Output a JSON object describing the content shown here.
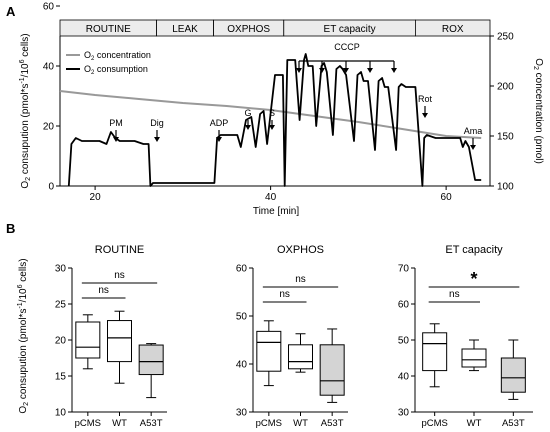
{
  "panel_a": {
    "letter": "A",
    "phases": [
      "ROUTINE",
      "LEAK",
      "OXPHOS",
      "ET capacity",
      "ROX"
    ],
    "legend": [
      {
        "label_main": "O",
        "label_sub": "2",
        "label_rest": " concentration",
        "color": "#999999"
      },
      {
        "label_main": "O",
        "label_sub": "2",
        "label_rest": " consumption",
        "color": "#000000"
      }
    ],
    "ylabel_left": {
      "a": "O",
      "b": "2",
      "c": " consupution (pmol*s",
      "d": "-1",
      "e": "/10",
      "f": "6",
      "g": " cells)"
    },
    "ylabel_right": {
      "a": "O",
      "b": "2",
      "c": " concentration (pmol)"
    },
    "xlabel": "Time [min]",
    "left_ticks": [
      "0",
      "20",
      "40",
      "60"
    ],
    "right_ticks": [
      "100",
      "150",
      "200",
      "250"
    ],
    "x_ticks": [
      "20",
      "40",
      "60"
    ],
    "annotations": [
      "PM",
      "Dig",
      "ADP",
      "G",
      "S",
      "CCCP",
      "Rot",
      "Ama"
    ]
  },
  "panel_b": {
    "letter": "B",
    "ylabel": {
      "a": "O",
      "b": "2",
      "c": " consupution (pmol*s",
      "d": "-1",
      "e": "/10",
      "f": "6",
      "g": " cells)"
    }
  },
  "chart_data": [
    {
      "type": "line",
      "title": "",
      "xlabel": "Time [min]",
      "ylabel": "O2 consupution (pmol*s-1/10^6 cells)",
      "y2label": "O2 concentration (pmol)",
      "xlim": [
        16,
        65
      ],
      "ylim": [
        0,
        50
      ],
      "y2lim": [
        100,
        250
      ],
      "grid": false,
      "legend": "top-left",
      "phase_regions": [
        {
          "label": "ROUTINE",
          "x_start": 16,
          "x_end": 27
        },
        {
          "label": "LEAK",
          "x_start": 27,
          "x_end": 33.5
        },
        {
          "label": "OXPHOS",
          "x_start": 33.5,
          "x_end": 41.5
        },
        {
          "label": "ET capacity",
          "x_start": 41.5,
          "x_end": 56.5
        },
        {
          "label": "ROX",
          "x_start": 56.5,
          "x_end": 65
        }
      ],
      "series": [
        {
          "name": "O2 concentration",
          "axis": "right",
          "color": "#999999",
          "x": [
            16,
            20,
            25,
            30,
            35,
            40,
            45,
            50,
            55,
            60,
            64
          ],
          "y": [
            195,
            191,
            187,
            183,
            180,
            176,
            170,
            164,
            157,
            150,
            148
          ]
        },
        {
          "name": "O2 consumption",
          "axis": "left",
          "color": "#000000",
          "x": [
            17,
            17.3,
            17.8,
            18.5,
            19.5,
            20.5,
            21.3,
            21.8,
            22.3,
            22.8,
            23.5,
            24.5,
            25.5,
            26.1,
            26.3,
            26.6,
            27,
            28,
            29,
            30,
            31,
            32,
            33,
            33.6,
            33.9,
            34.3,
            35,
            36.2,
            36.6,
            37.2,
            37.8,
            38.3,
            38.8,
            39.2,
            39.6,
            40.5,
            41.4,
            41.6,
            41.9,
            42.8,
            43.3,
            43.8,
            44,
            44.3,
            44.8,
            45.2,
            45.8,
            46.1,
            46.4,
            47.1,
            47.5,
            47.9,
            48.2,
            48.6,
            49.5,
            49.9,
            50.3,
            50.6,
            51.1,
            51.9,
            52.3,
            52.7,
            53,
            53.4,
            54.3,
            54.6,
            54.9,
            55.4,
            56.5,
            57.3,
            57.5,
            57.8,
            58.8,
            59.8,
            60.8,
            61.6,
            61.9,
            62.2,
            62.6,
            63.3,
            64
          ],
          "y": [
            0,
            14,
            16,
            15,
            15,
            15,
            14,
            18,
            16,
            15,
            15,
            15,
            14,
            14,
            0,
            1,
            1,
            1,
            1,
            1,
            1,
            1,
            1,
            1,
            16,
            17,
            17,
            17,
            13,
            22,
            23,
            13,
            24,
            25,
            14,
            37,
            37,
            0,
            42,
            42,
            22,
            42,
            44,
            40,
            40,
            20,
            40,
            41,
            38,
            17,
            39,
            40,
            39,
            37,
            15,
            37,
            38,
            35,
            35,
            12,
            35,
            36,
            33,
            33,
            12,
            33,
            34,
            33,
            33,
            0,
            16,
            17,
            16,
            16,
            16,
            16,
            13,
            15,
            13,
            2,
            2
          ]
        }
      ]
    },
    {
      "type": "box",
      "title": "ROUTINE",
      "categories": [
        "pCMS",
        "WT",
        "A53T"
      ],
      "ylim": [
        10,
        30
      ],
      "y_ticks": [
        10,
        15,
        20,
        25,
        30
      ],
      "boxes": [
        {
          "min": 16,
          "q1": 17.5,
          "median": 19,
          "q3": 22.5,
          "max": 23.5,
          "color": "#ffffff"
        },
        {
          "min": 14,
          "q1": 17,
          "median": 20.3,
          "q3": 22.7,
          "max": 24,
          "color": "#ffffff"
        },
        {
          "min": 12,
          "q1": 15.2,
          "median": 17,
          "q3": 19.3,
          "max": 19.5,
          "color": "#d4d4d4"
        }
      ],
      "significance": [
        {
          "pair": [
            "pCMS",
            "WT"
          ],
          "label": "ns"
        },
        {
          "pair": [
            "pCMS",
            "A53T"
          ],
          "label": "ns"
        }
      ]
    },
    {
      "type": "box",
      "title": "OXPHOS",
      "categories": [
        "pCMS",
        "WT",
        "A53T"
      ],
      "ylim": [
        30,
        60
      ],
      "y_ticks": [
        30,
        40,
        50,
        60
      ],
      "boxes": [
        {
          "min": 35.5,
          "q1": 38.5,
          "median": 44.5,
          "q3": 46.8,
          "max": 49,
          "color": "#ffffff"
        },
        {
          "min": 38.3,
          "q1": 39,
          "median": 40.5,
          "q3": 44,
          "max": 46.3,
          "color": "#ffffff"
        },
        {
          "min": 32,
          "q1": 33.5,
          "median": 36.5,
          "q3": 44,
          "max": 47.3,
          "color": "#d4d4d4"
        }
      ],
      "significance": [
        {
          "pair": [
            "pCMS",
            "WT"
          ],
          "label": "ns"
        },
        {
          "pair": [
            "pCMS",
            "A53T"
          ],
          "label": "ns"
        }
      ]
    },
    {
      "type": "box",
      "title": "ET capacity",
      "categories": [
        "pCMS",
        "WT",
        "A53T"
      ],
      "ylim": [
        30,
        70
      ],
      "y_ticks": [
        30,
        40,
        50,
        60,
        70
      ],
      "boxes": [
        {
          "min": 37,
          "q1": 41.5,
          "median": 49,
          "q3": 52,
          "max": 54.5,
          "color": "#ffffff"
        },
        {
          "min": 41.5,
          "q1": 42.5,
          "median": 44.5,
          "q3": 47.5,
          "max": 50,
          "color": "#ffffff"
        },
        {
          "min": 33.5,
          "q1": 35.5,
          "median": 39.5,
          "q3": 45,
          "max": 50,
          "color": "#d4d4d4"
        }
      ],
      "significance": [
        {
          "pair": [
            "pCMS",
            "WT"
          ],
          "label": "ns"
        },
        {
          "pair": [
            "pCMS",
            "A53T"
          ],
          "label": "*"
        }
      ]
    }
  ]
}
